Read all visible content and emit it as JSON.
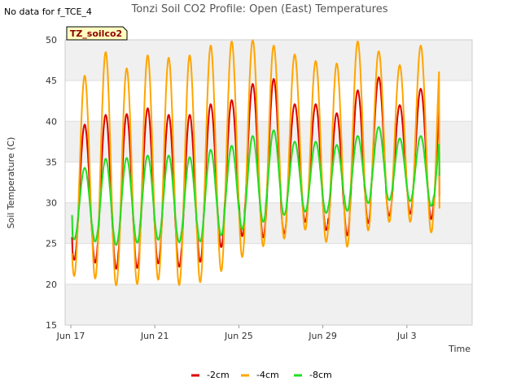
{
  "header": {
    "title": "Tonzi Soil CO2 Profile: Open (East) Temperatures",
    "no_data_note": "No data for f_TCE_4",
    "badge": "TZ_soilco2"
  },
  "colors": {
    "band": "#f0f0f0",
    "grid": "#dddddd",
    "badge_bg": "#ffffc0",
    "-2cm": "#dd0000",
    "-4cm": "#ffa500",
    "-8cm": "#22dd22"
  },
  "chart_data": {
    "type": "line",
    "title": "Tonzi Soil CO2 Profile: Open (East) Temperatures",
    "xlabel": "Time",
    "ylabel": "Soil Temperature (C)",
    "ylim": [
      15,
      50
    ],
    "yticks": [
      15,
      20,
      25,
      30,
      35,
      40,
      45,
      50
    ],
    "xlim": [
      "2024-06-17",
      "2024-07-06"
    ],
    "xticks": [
      {
        "label": "Jun 17",
        "day": 0
      },
      {
        "label": "Jun 21",
        "day": 4
      },
      {
        "label": "Jun 25",
        "day": 8
      },
      {
        "label": "Jun 29",
        "day": 12
      },
      {
        "label": "Jul 3",
        "day": 16
      }
    ],
    "grid": true,
    "legend_position": "bottom",
    "series_envelope_note": "daily minima and maxima per series, one entry per day starting Jun 17",
    "series": [
      {
        "name": "-2cm",
        "start": "Jun 17",
        "daily_min": [
          23.0,
          22.3,
          21.5,
          22.5,
          22.6,
          21.7,
          23.8,
          25.3,
          26.5,
          25.0,
          27.5,
          27.8,
          25.5,
          26.5,
          28.5,
          28.3,
          29.0,
          27.0
        ],
        "daily_max": [
          39.6,
          40.8,
          40.9,
          41.6,
          40.8,
          40.8,
          42.1,
          42.6,
          44.6,
          45.2,
          42.1,
          42.1,
          41.0,
          43.8,
          45.4,
          42.0,
          44.0,
          44.0
        ],
        "first_value": 25.8,
        "last_value": 30.8
      },
      {
        "name": "-4cm",
        "start": "Jun 17",
        "daily_min": [
          21.0,
          20.4,
          19.3,
          20.7,
          20.4,
          19.4,
          21.1,
          22.1,
          24.6,
          24.7,
          26.5,
          26.9,
          23.5,
          25.7,
          27.5,
          27.8,
          27.5,
          25.2
        ],
        "daily_max": [
          45.6,
          48.5,
          46.5,
          48.1,
          47.8,
          48.1,
          49.3,
          49.8,
          50.0,
          49.3,
          48.2,
          47.4,
          47.1,
          49.8,
          48.6,
          46.9,
          49.3,
          50.0
        ],
        "first_value": 23.8,
        "last_value": 29.3
      },
      {
        "name": "-8cm",
        "start": "Jun 17",
        "daily_min": [
          25.5,
          25.0,
          24.6,
          25.6,
          25.3,
          25.0,
          25.5,
          26.5,
          27.1,
          28.2,
          28.8,
          29.0,
          28.5,
          29.5,
          30.4,
          30.2,
          30.2,
          29.0
        ],
        "daily_max": [
          34.3,
          35.4,
          35.5,
          35.8,
          35.8,
          35.6,
          36.5,
          37.0,
          38.2,
          38.9,
          37.5,
          37.5,
          37.1,
          38.2,
          39.3,
          37.9,
          38.2,
          38.7
        ],
        "first_value": 28.5,
        "last_value": 33.3
      }
    ]
  }
}
